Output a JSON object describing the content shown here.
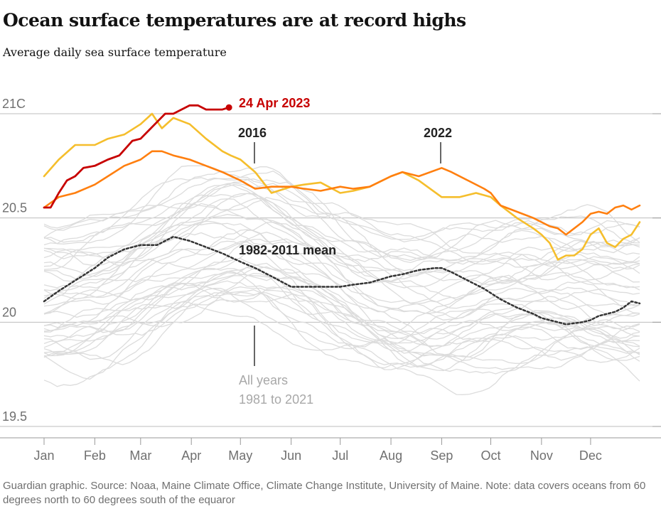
{
  "header": {
    "title": "Ocean surface temperatures are at record highs",
    "subtitle": "Average daily sea surface temperature"
  },
  "footer": {
    "note": "Guardian graphic. Source: Noaa, Maine Climate Office, Climate Change Institute, University of Maine. Note: data covers oceans from 60 degrees north to 60 degrees south of the equaror"
  },
  "annotations": {
    "record_date": "24 Apr 2023",
    "label_2016": "2016",
    "label_2022": "2022",
    "label_mean": "1982-2011 mean",
    "all_years_line1": "All years",
    "all_years_line2": "1981 to 2021"
  },
  "colors": {
    "series_2023": "#c70000",
    "series_2016": "#f5be2c",
    "series_2022": "#ff7f0f",
    "mean": "#333333",
    "all_years": "#dcdcdc",
    "gridline": "#bdbdbd"
  },
  "chart_data": {
    "type": "line",
    "title": "Ocean surface temperatures are at record highs",
    "subtitle": "Average daily sea surface temperature",
    "xlabel": "",
    "ylabel": "",
    "x_unit": "day of year",
    "xlim": [
      1,
      365
    ],
    "ylim": [
      19.5,
      21.0
    ],
    "grid": "horizontal",
    "y_ticks": [
      {
        "value": 21.0,
        "label": "21C"
      },
      {
        "value": 20.5,
        "label": "20.5"
      },
      {
        "value": 20.0,
        "label": "20"
      },
      {
        "value": 19.5,
        "label": "19.5"
      }
    ],
    "x_ticks": [
      {
        "day": 1,
        "label": "Jan"
      },
      {
        "day": 32,
        "label": "Feb"
      },
      {
        "day": 60,
        "label": "Mar"
      },
      {
        "day": 91,
        "label": "Apr"
      },
      {
        "day": 121,
        "label": "May"
      },
      {
        "day": 152,
        "label": "Jun"
      },
      {
        "day": 182,
        "label": "Jul"
      },
      {
        "day": 213,
        "label": "Aug"
      },
      {
        "day": 244,
        "label": "Sep"
      },
      {
        "day": 274,
        "label": "Oct"
      },
      {
        "day": 305,
        "label": "Nov"
      },
      {
        "day": 335,
        "label": "Dec"
      }
    ],
    "series": [
      {
        "name": "2016",
        "x": [
          1,
          10,
          20,
          32,
          40,
          50,
          60,
          67,
          73,
          80,
          90,
          100,
          110,
          115,
          121,
          130,
          140,
          152,
          160,
          170,
          182,
          190,
          200,
          213,
          220,
          230,
          244,
          255,
          265,
          274,
          280,
          290,
          300,
          305,
          310,
          315,
          320,
          325,
          330,
          335,
          340,
          345,
          350,
          355,
          360,
          365
        ],
        "values": [
          20.7,
          20.78,
          20.85,
          20.85,
          20.88,
          20.9,
          20.95,
          21.0,
          20.93,
          20.98,
          20.95,
          20.88,
          20.82,
          20.8,
          20.78,
          20.72,
          20.62,
          20.65,
          20.66,
          20.67,
          20.62,
          20.63,
          20.65,
          20.7,
          20.72,
          20.68,
          20.6,
          20.6,
          20.62,
          20.6,
          20.56,
          20.5,
          20.45,
          20.42,
          20.38,
          20.3,
          20.32,
          20.32,
          20.35,
          20.42,
          20.45,
          20.38,
          20.36,
          20.4,
          20.42,
          20.48
        ]
      },
      {
        "name": "2022",
        "x": [
          1,
          10,
          20,
          32,
          40,
          50,
          60,
          67,
          73,
          80,
          90,
          100,
          110,
          121,
          130,
          140,
          152,
          160,
          170,
          182,
          190,
          200,
          213,
          220,
          230,
          244,
          250,
          260,
          270,
          274,
          280,
          290,
          300,
          305,
          310,
          315,
          320,
          325,
          330,
          335,
          340,
          345,
          350,
          355,
          360,
          365
        ],
        "values": [
          20.55,
          20.6,
          20.62,
          20.66,
          20.7,
          20.75,
          20.78,
          20.82,
          20.82,
          20.8,
          20.78,
          20.75,
          20.72,
          20.68,
          20.64,
          20.65,
          20.65,
          20.64,
          20.63,
          20.65,
          20.64,
          20.65,
          20.7,
          20.72,
          20.7,
          20.74,
          20.72,
          20.68,
          20.64,
          20.62,
          20.56,
          20.53,
          20.5,
          20.48,
          20.46,
          20.45,
          20.42,
          20.45,
          20.48,
          20.52,
          20.53,
          20.52,
          20.55,
          20.56,
          20.54,
          20.56
        ]
      },
      {
        "name": "2023",
        "x": [
          1,
          5,
          10,
          15,
          20,
          25,
          32,
          40,
          47,
          55,
          60,
          65,
          70,
          75,
          80,
          85,
          90,
          95,
          100,
          105,
          110,
          114
        ],
        "values": [
          20.55,
          20.55,
          20.62,
          20.68,
          20.7,
          20.74,
          20.75,
          20.78,
          20.8,
          20.87,
          20.88,
          20.92,
          20.96,
          21.0,
          21.0,
          21.02,
          21.04,
          21.04,
          21.02,
          21.02,
          21.02,
          21.03
        ]
      },
      {
        "name": "1982-2011 mean",
        "x": [
          1,
          10,
          20,
          32,
          40,
          50,
          60,
          70,
          75,
          80,
          90,
          100,
          110,
          121,
          130,
          140,
          152,
          160,
          170,
          182,
          190,
          200,
          213,
          220,
          230,
          240,
          244,
          250,
          260,
          270,
          274,
          280,
          290,
          300,
          305,
          310,
          315,
          320,
          330,
          335,
          340,
          350,
          355,
          360,
          365
        ],
        "values": [
          20.1,
          20.15,
          20.2,
          20.26,
          20.31,
          20.35,
          20.37,
          20.37,
          20.39,
          20.41,
          20.39,
          20.36,
          20.33,
          20.29,
          20.26,
          20.22,
          20.17,
          20.17,
          20.17,
          20.17,
          20.18,
          20.19,
          20.22,
          20.23,
          20.25,
          20.26,
          20.26,
          20.24,
          20.2,
          20.16,
          20.14,
          20.11,
          20.07,
          20.04,
          20.02,
          20.01,
          20.0,
          19.99,
          20.0,
          20.01,
          20.03,
          20.05,
          20.07,
          20.1,
          20.09
        ]
      }
    ],
    "background_series": {
      "name": "All years 1981 to 2021",
      "count": 41,
      "approx_range": [
        19.65,
        20.75
      ]
    },
    "annotations": [
      {
        "text": "24 Apr 2023",
        "series": "2023",
        "day": 114
      },
      {
        "text": "2016",
        "series": "2016",
        "day": 119
      },
      {
        "text": "2022",
        "series": "2022",
        "day": 244
      },
      {
        "text": "1982-2011 mean",
        "series": "1982-2011 mean",
        "day": 121
      },
      {
        "text": "All years 1981 to 2021",
        "series": "All years 1981 to 2021",
        "day": 121
      }
    ]
  }
}
